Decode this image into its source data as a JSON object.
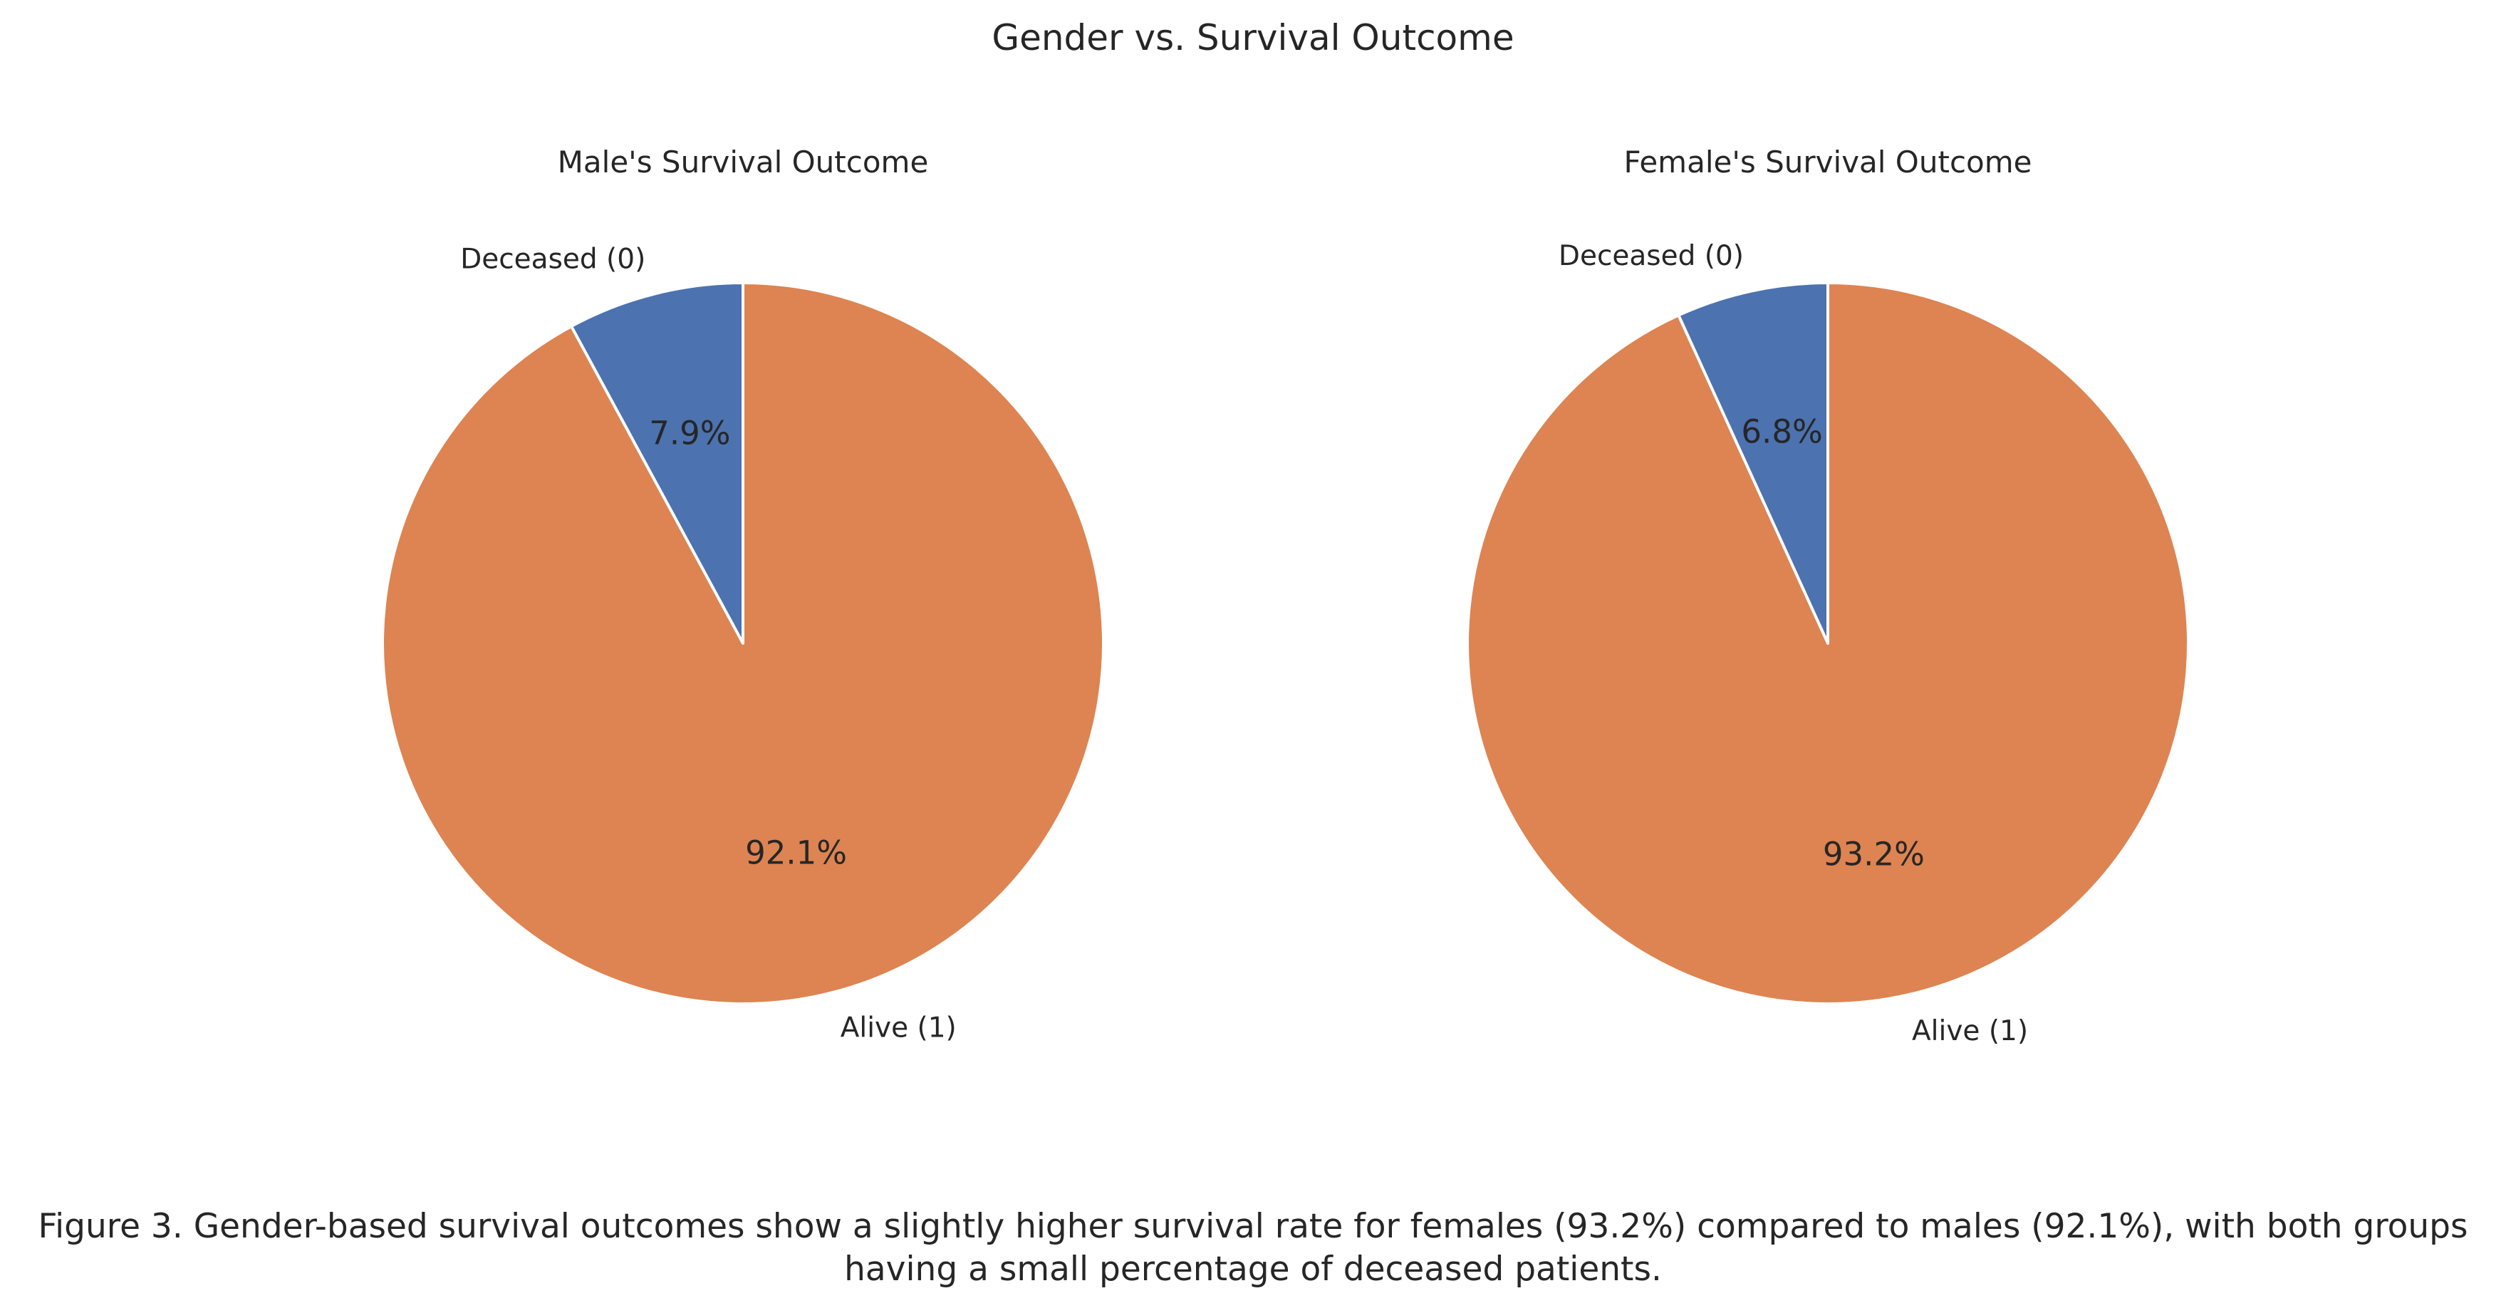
{
  "figure": {
    "title": "Gender vs. Survival Outcome",
    "caption_line1": "Figure 3. Gender-based survival outcomes show a slightly higher survival rate for females (93.2%) compared to males (92.1%), with both groups",
    "caption_line2": "having a small percentage of deceased patients."
  },
  "colors": {
    "deceased": "#4c72b0",
    "alive": "#dd8452",
    "edge": "#ffffff",
    "text": "#262626"
  },
  "chart_data": [
    {
      "type": "pie",
      "title": "Male's Survival Outcome",
      "start_angle": "90 degrees, counterclockwise",
      "slices": [
        {
          "label": "Deceased (0)",
          "value": 7.9,
          "pct_label": "7.9%"
        },
        {
          "label": "Alive (1)",
          "value": 92.1,
          "pct_label": "92.1%"
        }
      ]
    },
    {
      "type": "pie",
      "title": "Female's Survival Outcome",
      "start_angle": "90 degrees, counterclockwise",
      "slices": [
        {
          "label": "Deceased (0)",
          "value": 6.8,
          "pct_label": "6.8%"
        },
        {
          "label": "Alive (1)",
          "value": 93.2,
          "pct_label": "93.2%"
        }
      ]
    }
  ]
}
